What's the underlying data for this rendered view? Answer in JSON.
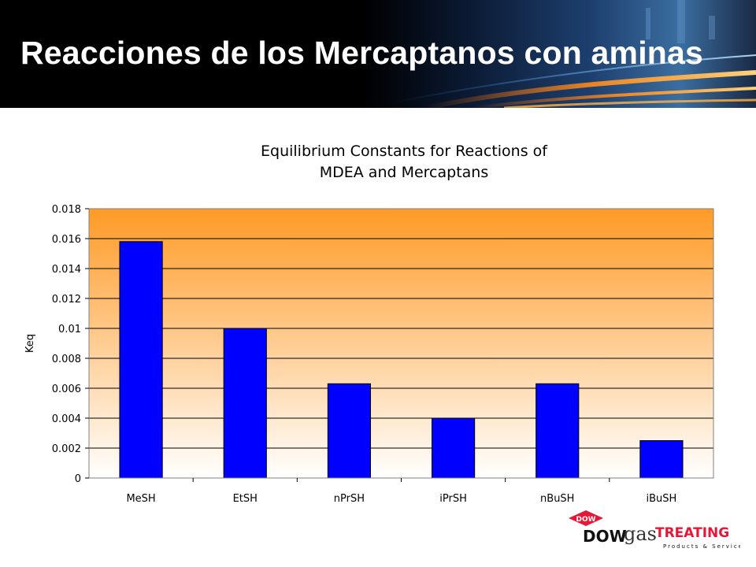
{
  "slide": {
    "title": "Reacciones de los Mercaptanos con aminas"
  },
  "colors": {
    "bar": "#0000ff",
    "plot_top": "#ff9a26",
    "plot_bottom": "#ffffff",
    "header_bg": "#000000"
  },
  "chart_data": {
    "type": "bar",
    "title_lines": [
      "Equilibrium Constants for Reactions of",
      "MDEA and Mercaptans"
    ],
    "xlabel": "",
    "ylabel": "Keq",
    "categories": [
      "MeSH",
      "EtSH",
      "nPrSH",
      "iPrSH",
      "nBuSH",
      "iBuSH"
    ],
    "values": [
      0.0158,
      0.01,
      0.0063,
      0.004,
      0.0063,
      0.0025
    ],
    "ylim": [
      0,
      0.018
    ],
    "yticks": [
      "0",
      "0.002",
      "0.004",
      "0.006",
      "0.008",
      "0.01",
      "0.012",
      "0.014",
      "0.016",
      "0.018"
    ],
    "grid": true,
    "legend": "none"
  },
  "logo": {
    "badge_text": "DOW",
    "brand_dow": "DOW",
    "brand_gas": "gas",
    "brand_treating": "TREATING",
    "tagline": "Products & Services"
  }
}
